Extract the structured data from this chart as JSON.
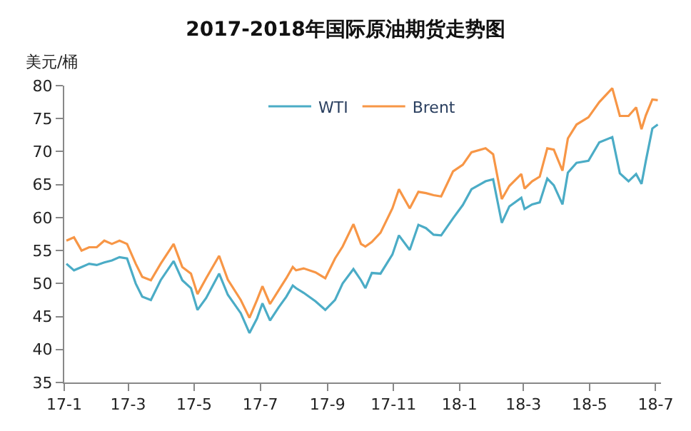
{
  "chart_data": {
    "type": "line",
    "title": "2017-2018年国际原油期货走势图",
    "ylabel": "美元/桶",
    "x": [
      "2017-01-03",
      "2017-01-10",
      "2017-01-17",
      "2017-01-24",
      "2017-01-31",
      "2017-02-07",
      "2017-02-14",
      "2017-02-21",
      "2017-02-28",
      "2017-03-08",
      "2017-03-14",
      "2017-03-22",
      "2017-03-31",
      "2017-04-12",
      "2017-04-20",
      "2017-04-28",
      "2017-05-04",
      "2017-05-12",
      "2017-05-24",
      "2017-06-01",
      "2017-06-13",
      "2017-06-21",
      "2017-06-28",
      "2017-07-03",
      "2017-07-10",
      "2017-07-18",
      "2017-07-25",
      "2017-07-31",
      "2017-08-03",
      "2017-08-10",
      "2017-08-21",
      "2017-08-30",
      "2017-09-08",
      "2017-09-15",
      "2017-09-25",
      "2017-10-02",
      "2017-10-06",
      "2017-10-12",
      "2017-10-20",
      "2017-10-31",
      "2017-11-06",
      "2017-11-16",
      "2017-11-24",
      "2017-12-01",
      "2017-12-08",
      "2017-12-15",
      "2017-12-26",
      "2018-01-04",
      "2018-01-12",
      "2018-01-25",
      "2018-02-01",
      "2018-02-09",
      "2018-02-16",
      "2018-02-27",
      "2018-03-02",
      "2018-03-09",
      "2018-03-16",
      "2018-03-23",
      "2018-03-29",
      "2018-04-06",
      "2018-04-11",
      "2018-04-19",
      "2018-04-30",
      "2018-05-10",
      "2018-05-22",
      "2018-05-29",
      "2018-06-06",
      "2018-06-13",
      "2018-06-18",
      "2018-06-22",
      "2018-06-28",
      "2018-07-03"
    ],
    "series": [
      {
        "name": "WTI",
        "color": "#4bacc6",
        "values": [
          53,
          52,
          52.5,
          53,
          52.8,
          53.2,
          53.5,
          54,
          53.8,
          50,
          48,
          47.5,
          50.5,
          53.4,
          50.5,
          49.3,
          46,
          47.8,
          51.5,
          48.3,
          45.5,
          42.5,
          44.7,
          47,
          44.4,
          46.4,
          48,
          49.7,
          49.3,
          48.6,
          47.3,
          46,
          47.5,
          50,
          52.2,
          50.5,
          49.3,
          51.6,
          51.5,
          54.4,
          57.3,
          55.1,
          58.9,
          58.4,
          57.4,
          57.3,
          59.9,
          61.9,
          64.3,
          65.5,
          65.8,
          59.2,
          61.7,
          63,
          61.3,
          62,
          62.3,
          65.9,
          64.9,
          62,
          66.8,
          68.3,
          68.6,
          71.4,
          72.2,
          66.7,
          65.5,
          66.6,
          65.1,
          68.6,
          73.5,
          74.1
        ]
      },
      {
        "name": "Brent",
        "color": "#f79646",
        "values": [
          56.5,
          57,
          55,
          55.5,
          55.5,
          56.5,
          56,
          56.5,
          56,
          53,
          51,
          50.5,
          53,
          56,
          52.5,
          51.5,
          48.4,
          50.8,
          54.2,
          50.6,
          47.5,
          44.8,
          47.5,
          49.6,
          46.9,
          49,
          50.8,
          52.5,
          52,
          52.3,
          51.7,
          50.8,
          53.8,
          55.6,
          59,
          56,
          55.6,
          56.3,
          57.7,
          61.4,
          64.3,
          61.4,
          63.9,
          63.7,
          63.4,
          63.2,
          67,
          68,
          69.9,
          70.5,
          69.6,
          62.8,
          64.8,
          66.6,
          64.4,
          65.5,
          66.2,
          70.5,
          70.3,
          67.1,
          72,
          74.1,
          75.2,
          77.5,
          79.6,
          75.4,
          75.4,
          76.7,
          73.4,
          75.5,
          77.9,
          77.8
        ]
      }
    ],
    "xlim": [
      "2017-01-01",
      "2018-07-06"
    ],
    "xticks": [
      {
        "value": "2017-01-01",
        "label": "17-1"
      },
      {
        "value": "2017-03-01",
        "label": "17-3"
      },
      {
        "value": "2017-05-01",
        "label": "17-5"
      },
      {
        "value": "2017-07-01",
        "label": "17-7"
      },
      {
        "value": "2017-09-01",
        "label": "17-9"
      },
      {
        "value": "2017-11-01",
        "label": "17-11"
      },
      {
        "value": "2018-01-01",
        "label": "18-1"
      },
      {
        "value": "2018-03-01",
        "label": "18-3"
      },
      {
        "value": "2018-05-01",
        "label": "18-5"
      },
      {
        "value": "2018-07-01",
        "label": "18-7"
      }
    ],
    "ylim": [
      35,
      80
    ],
    "yticks": [
      35,
      40,
      45,
      50,
      55,
      60,
      65,
      70,
      75,
      80
    ],
    "legend": "top",
    "marker": "none",
    "line_style": "solid"
  }
}
